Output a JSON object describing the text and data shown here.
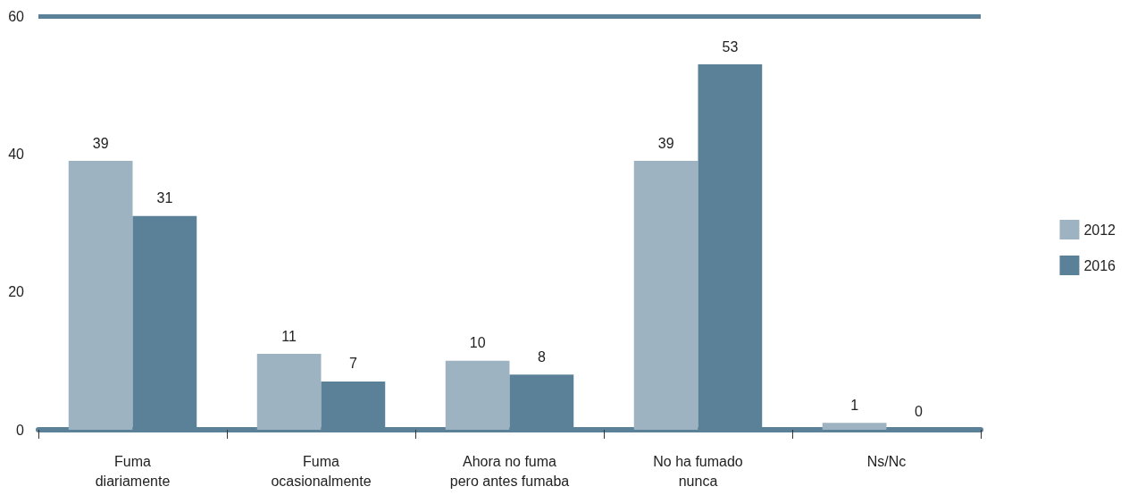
{
  "chart_data": {
    "type": "bar",
    "categories": [
      "Fuma\ndiariamente",
      "Fuma\nocasionalmente",
      "Ahora no fuma\npero antes fumaba",
      "No ha fumado\nnunca",
      "Ns/Nc"
    ],
    "series": [
      {
        "name": "2012",
        "color": "#9db3c1",
        "values": [
          39,
          11,
          10,
          39,
          1
        ]
      },
      {
        "name": "2016",
        "color": "#5b8199",
        "values": [
          31,
          7,
          8,
          53,
          0
        ]
      }
    ],
    "ylim": [
      0,
      60
    ],
    "yticks": [
      0,
      20,
      40,
      60
    ],
    "ref_lines": [
      {
        "axis": "y",
        "value": 60,
        "color": "#5b8199"
      }
    ],
    "grid": false,
    "legend": "right",
    "data_labels": true
  }
}
